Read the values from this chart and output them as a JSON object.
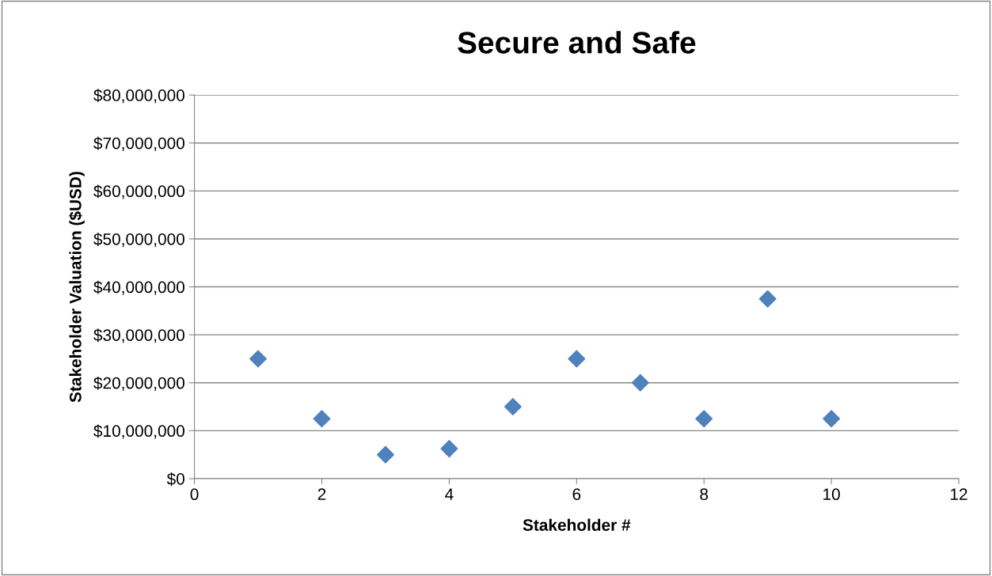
{
  "chart_data": {
    "type": "scatter",
    "title": "Secure and Safe",
    "xlabel": "Stakeholder #",
    "ylabel": "Stakeholder Valuation ($USD)",
    "x": [
      1,
      2,
      3,
      4,
      5,
      6,
      7,
      8,
      9,
      10
    ],
    "series": [
      {
        "color": "#4f81bd",
        "values": [
          25000000,
          12500000,
          5000000,
          6250000,
          15000000,
          25000000,
          20000000,
          12500000,
          37500000,
          12500000
        ]
      }
    ],
    "xlim": [
      0,
      12
    ],
    "xticks": [
      0,
      2,
      4,
      6,
      8,
      10,
      12
    ],
    "ylim": [
      0,
      80000000
    ],
    "yticks": [
      {
        "value": 0,
        "label": "$0"
      },
      {
        "value": 10000000,
        "label": "$10,000,000"
      },
      {
        "value": 20000000,
        "label": "$20,000,000"
      },
      {
        "value": 30000000,
        "label": "$30,000,000"
      },
      {
        "value": 40000000,
        "label": "$40,000,000"
      },
      {
        "value": 50000000,
        "label": "$50,000,000"
      },
      {
        "value": 60000000,
        "label": "$60,000,000"
      },
      {
        "value": 70000000,
        "label": "$70,000,000"
      },
      {
        "value": 80000000,
        "label": "$80,000,000"
      }
    ],
    "grid": "y",
    "legend": false,
    "marker": "diamond"
  }
}
